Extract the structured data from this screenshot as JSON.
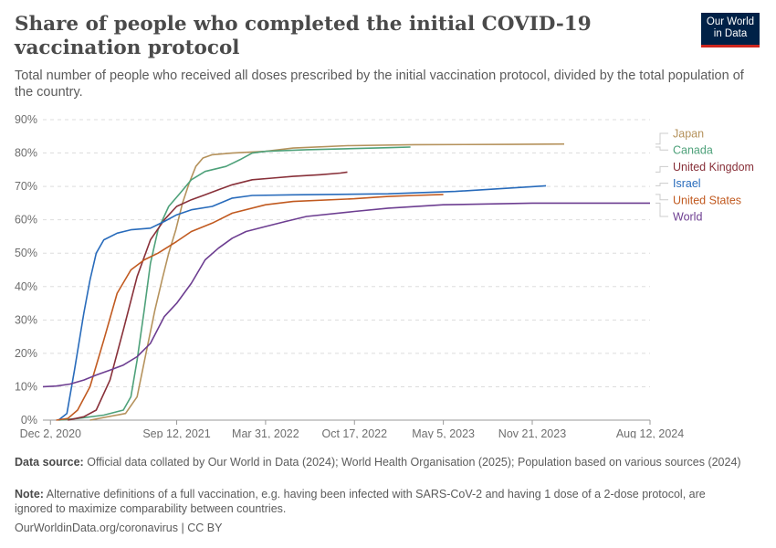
{
  "header": {
    "title": "Share of people who completed the initial COVID-19 vaccination protocol",
    "subtitle": "Total number of people who received all doses prescribed by the initial vaccination protocol, divided by the total population of the country.",
    "logo_line1": "Our World",
    "logo_line2": "in Data"
  },
  "chart_data": {
    "type": "line",
    "title": "Share of people who completed the initial COVID-19 vaccination protocol",
    "xlabel": "",
    "ylabel": "",
    "ylim": [
      0,
      90
    ],
    "xlim": [
      "2020-11-15",
      "2024-08-12"
    ],
    "grid": true,
    "legend_placement": "right",
    "yticks": [
      0,
      10,
      20,
      30,
      40,
      50,
      60,
      70,
      80,
      90
    ],
    "ytick_labels": [
      "0%",
      "10%",
      "20%",
      "30%",
      "40%",
      "50%",
      "60%",
      "70%",
      "80%",
      "90%"
    ],
    "xticks": [
      "2020-12-02",
      "2021-09-12",
      "2022-03-31",
      "2022-10-17",
      "2023-05-05",
      "2023-11-21",
      "2024-08-12"
    ],
    "xtick_labels": [
      "Dec 2, 2020",
      "Sep 12, 2021",
      "Mar 31, 2022",
      "Oct 17, 2022",
      "May 5, 2023",
      "Nov 21, 2023",
      "Aug 12, 2024"
    ],
    "series": [
      {
        "name": "Japan",
        "color": "#b5925c",
        "points": [
          [
            "2021-03-01",
            0
          ],
          [
            "2021-05-20",
            2
          ],
          [
            "2021-06-15",
            7
          ],
          [
            "2021-07-05",
            20
          ],
          [
            "2021-07-25",
            33
          ],
          [
            "2021-08-10",
            42
          ],
          [
            "2021-08-25",
            50
          ],
          [
            "2021-09-10",
            57
          ],
          [
            "2021-09-25",
            65
          ],
          [
            "2021-10-10",
            71
          ],
          [
            "2021-10-25",
            76
          ],
          [
            "2021-11-10",
            78.5
          ],
          [
            "2021-12-01",
            79.5
          ],
          [
            "2022-01-15",
            80
          ],
          [
            "2022-03-31",
            80.5
          ],
          [
            "2022-06-01",
            81.5
          ],
          [
            "2022-10-01",
            82.2
          ],
          [
            "2023-03-01",
            82.5
          ],
          [
            "2023-10-01",
            82.6
          ],
          [
            "2024-02-01",
            82.7
          ]
        ]
      },
      {
        "name": "Canada",
        "color": "#4ea17a",
        "points": [
          [
            "2020-12-20",
            0
          ],
          [
            "2021-02-01",
            0.5
          ],
          [
            "2021-04-01",
            1.5
          ],
          [
            "2021-05-15",
            3
          ],
          [
            "2021-06-01",
            7
          ],
          [
            "2021-06-15",
            18
          ],
          [
            "2021-07-01",
            33
          ],
          [
            "2021-07-15",
            47
          ],
          [
            "2021-08-01",
            57
          ],
          [
            "2021-08-25",
            64
          ],
          [
            "2021-09-20",
            68
          ],
          [
            "2021-10-15",
            72
          ],
          [
            "2021-11-15",
            74.5
          ],
          [
            "2022-01-01",
            76
          ],
          [
            "2022-02-01",
            78
          ],
          [
            "2022-03-01",
            80
          ],
          [
            "2022-03-31",
            80.5
          ],
          [
            "2022-07-01",
            81
          ],
          [
            "2023-01-01",
            81.6
          ],
          [
            "2023-02-20",
            81.8
          ]
        ]
      },
      {
        "name": "United Kingdom",
        "color": "#883039",
        "points": [
          [
            "2021-01-10",
            0
          ],
          [
            "2021-02-15",
            1
          ],
          [
            "2021-03-15",
            3
          ],
          [
            "2021-04-15",
            12
          ],
          [
            "2021-05-15",
            27
          ],
          [
            "2021-06-15",
            43
          ],
          [
            "2021-07-15",
            54
          ],
          [
            "2021-08-15",
            60
          ],
          [
            "2021-09-12",
            64
          ],
          [
            "2021-10-15",
            66
          ],
          [
            "2021-11-15",
            67.5
          ],
          [
            "2021-12-15",
            69
          ],
          [
            "2022-01-15",
            70.5
          ],
          [
            "2022-03-01",
            72
          ],
          [
            "2022-04-15",
            72.5
          ],
          [
            "2022-06-01",
            73
          ],
          [
            "2022-08-01",
            73.5
          ],
          [
            "2022-09-15",
            74
          ],
          [
            "2022-10-01",
            74.3
          ]
        ]
      },
      {
        "name": "Israel",
        "color": "#286bbb",
        "points": [
          [
            "2020-12-20",
            0
          ],
          [
            "2021-01-08",
            2
          ],
          [
            "2021-01-25",
            15
          ],
          [
            "2021-02-15",
            32
          ],
          [
            "2021-03-01",
            42
          ],
          [
            "2021-03-15",
            50
          ],
          [
            "2021-04-01",
            54
          ],
          [
            "2021-05-01",
            56
          ],
          [
            "2021-06-01",
            57
          ],
          [
            "2021-07-15",
            57.5
          ],
          [
            "2021-08-15",
            59.5
          ],
          [
            "2021-09-12",
            61.5
          ],
          [
            "2021-10-15",
            63
          ],
          [
            "2021-12-01",
            64
          ],
          [
            "2022-01-15",
            66.5
          ],
          [
            "2022-03-01",
            67.3
          ],
          [
            "2022-06-01",
            67.5
          ],
          [
            "2023-01-01",
            67.8
          ],
          [
            "2023-06-01",
            68.5
          ],
          [
            "2023-10-01",
            69.5
          ],
          [
            "2023-12-22",
            70.2
          ]
        ]
      },
      {
        "name": "United States",
        "color": "#c15a20",
        "points": [
          [
            "2020-12-15",
            0
          ],
          [
            "2021-01-10",
            0.5
          ],
          [
            "2021-02-01",
            3
          ],
          [
            "2021-03-01",
            10
          ],
          [
            "2021-04-01",
            24
          ],
          [
            "2021-05-01",
            38
          ],
          [
            "2021-06-01",
            45
          ],
          [
            "2021-07-01",
            48
          ],
          [
            "2021-08-01",
            50
          ],
          [
            "2021-09-12",
            53.5
          ],
          [
            "2021-10-15",
            56.5
          ],
          [
            "2021-12-01",
            59
          ],
          [
            "2022-01-15",
            62
          ],
          [
            "2022-03-31",
            64.5
          ],
          [
            "2022-06-01",
            65.5
          ],
          [
            "2022-10-17",
            66.3
          ],
          [
            "2023-01-01",
            67
          ],
          [
            "2023-03-01",
            67.3
          ],
          [
            "2023-05-05",
            67.6
          ]
        ]
      },
      {
        "name": "World",
        "color": "#6d3e91",
        "points": [
          [
            "2020-11-15",
            10
          ],
          [
            "2020-12-15",
            10.2
          ],
          [
            "2021-01-15",
            10.8
          ],
          [
            "2021-02-15",
            12
          ],
          [
            "2021-03-15",
            13.5
          ],
          [
            "2021-04-15",
            15
          ],
          [
            "2021-05-15",
            16.5
          ],
          [
            "2021-06-15",
            19
          ],
          [
            "2021-07-15",
            23
          ],
          [
            "2021-08-15",
            31
          ],
          [
            "2021-09-12",
            35
          ],
          [
            "2021-10-15",
            41
          ],
          [
            "2021-11-15",
            48
          ],
          [
            "2021-12-15",
            51.5
          ],
          [
            "2022-01-15",
            54.5
          ],
          [
            "2022-02-15",
            56.5
          ],
          [
            "2022-03-31",
            58
          ],
          [
            "2022-05-15",
            59.5
          ],
          [
            "2022-07-01",
            61
          ],
          [
            "2022-10-17",
            62.5
          ],
          [
            "2023-01-01",
            63.5
          ],
          [
            "2023-05-05",
            64.5
          ],
          [
            "2023-11-21",
            65
          ],
          [
            "2024-08-12",
            65
          ]
        ]
      }
    ]
  },
  "footer": {
    "source_label": "Data source:",
    "source_text": "Official data collated by Our World in Data (2024); World Health Organisation (2025); Population based on various sources (2024)",
    "note_label": "Note:",
    "note_text": "Alternative definitions of a full vaccination, e.g. having been infected with SARS-CoV-2 and having 1 dose of a 2-dose protocol, are ignored to maximize comparability between countries.",
    "credit": "OurWorldinData.org/coronavirus | CC BY"
  }
}
